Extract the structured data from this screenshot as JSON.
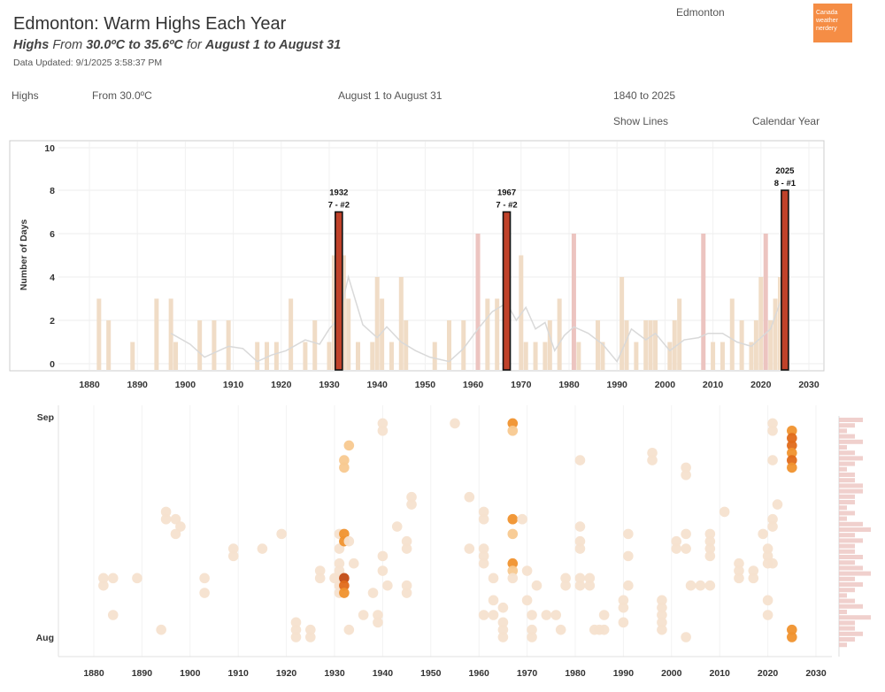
{
  "header": {
    "title": "Edmonton: Warm Highs Each Year",
    "subtitle_measure": "Highs",
    "subtitle_from_word": "From",
    "subtitle_range": "30.0ºC to 35.6ºC",
    "subtitle_for_word": "for",
    "subtitle_period": "August 1 to August 31",
    "updated": "Data Updated: 9/1/2025 3:58:37 PM",
    "city": "Edmonton",
    "logo_text": "Canada weather nerdery"
  },
  "filters": {
    "measure": "Highs",
    "threshold": "From 30.0ºC",
    "period": "August 1 to August 31",
    "years": "1840 to 2025",
    "lines": "Show Lines",
    "year_type": "Calendar Year"
  },
  "colors": {
    "bar_light": "#f0dcc6",
    "bar_pink": "#ecc4c0",
    "highlight": "#c0422a",
    "line": "#d9d9d9",
    "dot1": "#f6e2cf",
    "dot2": "#f8c990",
    "dot3": "#f0922e",
    "dot4": "#e06a1a",
    "dot5": "#c24a12"
  },
  "chart_data": [
    {
      "type": "bar",
      "ylabel": "Number of Days",
      "ylim": [
        0,
        10
      ],
      "yticks": [
        0,
        2,
        4,
        6,
        8,
        10
      ],
      "xticks": [
        1880,
        1890,
        1900,
        1910,
        1920,
        1930,
        1940,
        1950,
        1960,
        1970,
        1980,
        1990,
        2000,
        2010,
        2020,
        2030
      ],
      "series": [
        {
          "name": "Days",
          "x": [
            1882,
            1884,
            1889,
            1894,
            1897,
            1898,
            1903,
            1906,
            1909,
            1915,
            1917,
            1919,
            1922,
            1925,
            1927,
            1930,
            1931,
            1932,
            1933,
            1934,
            1936,
            1939,
            1940,
            1941,
            1943,
            1945,
            1946,
            1952,
            1955,
            1958,
            1961,
            1963,
            1965,
            1967,
            1970,
            1971,
            1973,
            1975,
            1976,
            1978,
            1981,
            1982,
            1986,
            1987,
            1991,
            1992,
            1994,
            1996,
            1997,
            1998,
            2001,
            2002,
            2003,
            2008,
            2010,
            2012,
            2014,
            2016,
            2018,
            2019,
            2020,
            2021,
            2022,
            2023,
            2024,
            2025
          ],
          "values": [
            3,
            2,
            1,
            3,
            3,
            1,
            2,
            2,
            2,
            1,
            1,
            1,
            3,
            1,
            2,
            1,
            5,
            7,
            5,
            3,
            1,
            1,
            4,
            3,
            1,
            4,
            2,
            1,
            2,
            2,
            6,
            3,
            3,
            7,
            5,
            1,
            1,
            1,
            2,
            3,
            6,
            1,
            2,
            1,
            4,
            2,
            1,
            2,
            2,
            2,
            1,
            2,
            3,
            6,
            1,
            1,
            3,
            2,
            1,
            2,
            4,
            6,
            2,
            3,
            4,
            8
          ]
        },
        {
          "name": "Trend",
          "x": [
            1897,
            1901,
            1904,
            1909,
            1912,
            1915,
            1918,
            1921,
            1925,
            1928,
            1930,
            1932,
            1934,
            1937,
            1940,
            1942,
            1945,
            1948,
            1951,
            1955,
            1958,
            1961,
            1964,
            1967,
            1969,
            1971,
            1973,
            1975,
            1977,
            1979,
            1981,
            1984,
            1987,
            1990,
            1993,
            1996,
            1998,
            2001,
            2004,
            2007,
            2009,
            2012,
            2015,
            2018,
            2020,
            2022,
            2024,
            2025
          ],
          "values": [
            1.4,
            0.9,
            0.3,
            0.8,
            0.7,
            0.1,
            0.4,
            0.6,
            1.1,
            0.9,
            1.6,
            2.1,
            4.0,
            1.8,
            1.2,
            1.7,
            1.0,
            0.6,
            0.3,
            0.1,
            0.7,
            1.6,
            2.4,
            2.8,
            2.0,
            2.6,
            1.6,
            1.9,
            0.6,
            1.3,
            1.7,
            1.4,
            0.9,
            0.1,
            1.6,
            1.1,
            1.4,
            0.6,
            1.1,
            1.2,
            1.4,
            1.4,
            1.0,
            0.8,
            1.2,
            1.6,
            2.8,
            3.4
          ]
        }
      ],
      "annotations": [
        {
          "year": 1932,
          "label": "1932",
          "sub": "7 - #2"
        },
        {
          "year": 1967,
          "label": "1967",
          "sub": "7 - #2"
        },
        {
          "year": 2025,
          "label": "2025",
          "sub": "8 - #1"
        }
      ]
    },
    {
      "type": "scatter",
      "yticks": [
        "Aug",
        "Sep"
      ],
      "xticks": [
        1880,
        1890,
        1900,
        1910,
        1920,
        1930,
        1940,
        1950,
        1960,
        1970,
        1980,
        1990,
        2000,
        2010,
        2020,
        2030
      ],
      "points": [
        [
          1882,
          8,
          1
        ],
        [
          1882,
          9,
          1
        ],
        [
          1884,
          9,
          1
        ],
        [
          1884,
          4,
          1
        ],
        [
          1889,
          9,
          1
        ],
        [
          1894,
          2,
          1
        ],
        [
          1895,
          18,
          1
        ],
        [
          1895,
          17,
          1
        ],
        [
          1897,
          17,
          1
        ],
        [
          1898,
          16,
          1
        ],
        [
          1897,
          15,
          1
        ],
        [
          1903,
          9,
          1
        ],
        [
          1903,
          7,
          1
        ],
        [
          1909,
          13,
          1
        ],
        [
          1909,
          12,
          1
        ],
        [
          1915,
          13,
          1
        ],
        [
          1919,
          15,
          1
        ],
        [
          1922,
          1,
          1
        ],
        [
          1922,
          2,
          1
        ],
        [
          1922,
          3,
          1
        ],
        [
          1925,
          2,
          1
        ],
        [
          1925,
          1,
          1
        ],
        [
          1927,
          10,
          1
        ],
        [
          1927,
          9,
          1
        ],
        [
          1930,
          9,
          1
        ],
        [
          1931,
          11,
          1
        ],
        [
          1931,
          10,
          1
        ],
        [
          1931,
          13,
          1
        ],
        [
          1931,
          15,
          1
        ],
        [
          1931,
          8,
          1
        ],
        [
          1931,
          7,
          1
        ],
        [
          1932,
          25,
          2
        ],
        [
          1932,
          24,
          2
        ],
        [
          1932,
          15,
          3
        ],
        [
          1932,
          14,
          3
        ],
        [
          1932,
          9,
          5
        ],
        [
          1932,
          8,
          4
        ],
        [
          1932,
          7,
          3
        ],
        [
          1933,
          2,
          1
        ],
        [
          1933,
          27,
          2
        ],
        [
          1933,
          14,
          1
        ],
        [
          1934,
          11,
          1
        ],
        [
          1936,
          4,
          1
        ],
        [
          1938,
          7,
          1
        ],
        [
          1939,
          4,
          1
        ],
        [
          1939,
          3,
          1
        ],
        [
          1940,
          30,
          1
        ],
        [
          1940,
          29,
          1
        ],
        [
          1940,
          12,
          1
        ],
        [
          1940,
          10,
          1
        ],
        [
          1941,
          8,
          1
        ],
        [
          1943,
          16,
          1
        ],
        [
          1945,
          14,
          1
        ],
        [
          1945,
          13,
          1
        ],
        [
          1945,
          8,
          1
        ],
        [
          1945,
          7,
          1
        ],
        [
          1946,
          20,
          1
        ],
        [
          1946,
          19,
          1
        ],
        [
          1955,
          30,
          1
        ],
        [
          1958,
          13,
          1
        ],
        [
          1958,
          20,
          1
        ],
        [
          1961,
          18,
          1
        ],
        [
          1961,
          17,
          1
        ],
        [
          1961,
          13,
          1
        ],
        [
          1961,
          12,
          1
        ],
        [
          1961,
          11,
          1
        ],
        [
          1961,
          4,
          1
        ],
        [
          1963,
          9,
          1
        ],
        [
          1963,
          4,
          1
        ],
        [
          1963,
          6,
          1
        ],
        [
          1965,
          2,
          1
        ],
        [
          1965,
          1,
          1
        ],
        [
          1965,
          3,
          1
        ],
        [
          1965,
          5,
          1
        ],
        [
          1967,
          30,
          3
        ],
        [
          1967,
          29,
          2
        ],
        [
          1967,
          17,
          3
        ],
        [
          1967,
          15,
          2
        ],
        [
          1967,
          11,
          3
        ],
        [
          1967,
          10,
          2
        ],
        [
          1967,
          9,
          1
        ],
        [
          1969,
          17,
          1
        ],
        [
          1970,
          6,
          1
        ],
        [
          1970,
          10,
          1
        ],
        [
          1971,
          4,
          1
        ],
        [
          1971,
          2,
          1
        ],
        [
          1971,
          1,
          1
        ],
        [
          1972,
          8,
          1
        ],
        [
          1974,
          4,
          1
        ],
        [
          1976,
          4,
          1
        ],
        [
          1977,
          2,
          1
        ],
        [
          1978,
          9,
          1
        ],
        [
          1978,
          8,
          1
        ],
        [
          1981,
          16,
          1
        ],
        [
          1981,
          14,
          1
        ],
        [
          1981,
          13,
          1
        ],
        [
          1981,
          9,
          1
        ],
        [
          1981,
          8,
          1
        ],
        [
          1981,
          25,
          1
        ],
        [
          1983,
          9,
          1
        ],
        [
          1983,
          8,
          1
        ],
        [
          1984,
          2,
          1
        ],
        [
          1985,
          2,
          1
        ],
        [
          1986,
          2,
          1
        ],
        [
          1986,
          4,
          1
        ],
        [
          1990,
          6,
          1
        ],
        [
          1990,
          5,
          1
        ],
        [
          1990,
          3,
          1
        ],
        [
          1991,
          8,
          1
        ],
        [
          1991,
          15,
          1
        ],
        [
          1991,
          12,
          1
        ],
        [
          1996,
          26,
          1
        ],
        [
          1996,
          25,
          1
        ],
        [
          1998,
          6,
          1
        ],
        [
          1998,
          5,
          1
        ],
        [
          1998,
          4,
          1
        ],
        [
          1998,
          3,
          1
        ],
        [
          1998,
          2,
          1
        ],
        [
          2001,
          14,
          1
        ],
        [
          2001,
          13,
          1
        ],
        [
          2003,
          24,
          1
        ],
        [
          2003,
          23,
          1
        ],
        [
          2003,
          15,
          1
        ],
        [
          2003,
          13,
          1
        ],
        [
          2003,
          1,
          1
        ],
        [
          2004,
          8,
          1
        ],
        [
          2006,
          8,
          1
        ],
        [
          2008,
          15,
          1
        ],
        [
          2008,
          14,
          1
        ],
        [
          2008,
          13,
          1
        ],
        [
          2008,
          12,
          1
        ],
        [
          2008,
          8,
          1
        ],
        [
          2011,
          18,
          1
        ],
        [
          2014,
          11,
          1
        ],
        [
          2014,
          10,
          1
        ],
        [
          2014,
          9,
          1
        ],
        [
          2017,
          10,
          1
        ],
        [
          2017,
          9,
          1
        ],
        [
          2019,
          15,
          1
        ],
        [
          2020,
          13,
          1
        ],
        [
          2020,
          12,
          1
        ],
        [
          2020,
          11,
          1
        ],
        [
          2020,
          6,
          1
        ],
        [
          2020,
          4,
          1
        ],
        [
          2021,
          30,
          1
        ],
        [
          2021,
          29,
          1
        ],
        [
          2021,
          17,
          1
        ],
        [
          2021,
          16,
          1
        ],
        [
          2021,
          11,
          1
        ],
        [
          2021,
          25,
          1
        ],
        [
          2022,
          19,
          1
        ],
        [
          2025,
          29,
          3
        ],
        [
          2025,
          28,
          4
        ],
        [
          2025,
          27,
          4
        ],
        [
          2025,
          26,
          3
        ],
        [
          2025,
          25,
          4
        ],
        [
          2025,
          24,
          3
        ],
        [
          2025,
          2,
          3
        ],
        [
          2025,
          1,
          3
        ]
      ],
      "marginal_histogram": [
        3,
        2,
        1,
        2,
        3,
        1,
        2,
        3,
        2,
        1,
        2,
        2,
        3,
        3,
        2,
        2,
        1,
        2,
        1,
        3,
        4,
        2,
        3,
        2,
        2,
        3,
        2,
        3,
        4,
        2,
        3,
        2,
        1,
        2,
        3,
        1,
        4,
        2,
        2,
        3,
        2,
        1
      ]
    }
  ]
}
